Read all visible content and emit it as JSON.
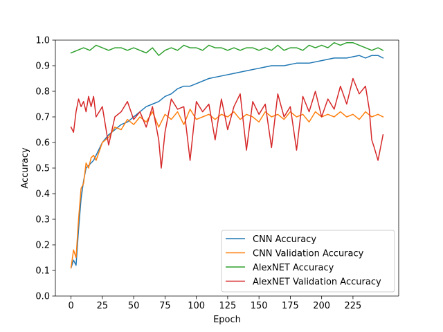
{
  "chart_data": {
    "type": "line",
    "xlabel": "Epoch",
    "ylabel": "Accuracy",
    "xlim": [
      -12.5,
      261.5
    ],
    "ylim": [
      0.0,
      1.0
    ],
    "xticks": [
      0,
      25,
      50,
      75,
      100,
      125,
      150,
      175,
      200,
      225
    ],
    "yticks": [
      0.0,
      0.1,
      0.2,
      0.3,
      0.4,
      0.5,
      0.6,
      0.7,
      0.8,
      0.9,
      1.0
    ],
    "xtick_labels": [
      "0",
      "25",
      "50",
      "75",
      "100",
      "125",
      "150",
      "175",
      "200",
      "225"
    ],
    "ytick_labels": [
      "0.0",
      "0.1",
      "0.2",
      "0.3",
      "0.4",
      "0.5",
      "0.6",
      "0.7",
      "0.8",
      "0.9",
      "1.0"
    ],
    "grid": false,
    "legend_position": "lower-right",
    "series": [
      {
        "name": "CNN Accuracy",
        "color": "#1f77b4",
        "x": [
          0,
          2,
          4,
          6,
          8,
          10,
          12,
          14,
          16,
          18,
          20,
          25,
          30,
          35,
          40,
          45,
          50,
          55,
          60,
          65,
          70,
          75,
          80,
          85,
          90,
          95,
          100,
          110,
          120,
          130,
          140,
          150,
          160,
          170,
          180,
          190,
          200,
          210,
          220,
          230,
          235,
          240,
          245,
          249
        ],
        "y": [
          0.11,
          0.14,
          0.12,
          0.26,
          0.38,
          0.45,
          0.5,
          0.51,
          0.52,
          0.53,
          0.55,
          0.6,
          0.63,
          0.65,
          0.67,
          0.68,
          0.7,
          0.72,
          0.74,
          0.75,
          0.76,
          0.78,
          0.79,
          0.81,
          0.82,
          0.82,
          0.83,
          0.85,
          0.86,
          0.87,
          0.88,
          0.89,
          0.9,
          0.9,
          0.91,
          0.91,
          0.92,
          0.93,
          0.93,
          0.94,
          0.93,
          0.94,
          0.94,
          0.93
        ]
      },
      {
        "name": "CNN Validation Accuracy",
        "color": "#ff7f0e",
        "x": [
          0,
          2,
          4,
          6,
          8,
          10,
          12,
          14,
          16,
          18,
          20,
          25,
          30,
          35,
          40,
          45,
          50,
          55,
          60,
          65,
          70,
          75,
          80,
          85,
          90,
          95,
          100,
          105,
          110,
          115,
          120,
          125,
          130,
          135,
          140,
          145,
          150,
          155,
          160,
          165,
          170,
          175,
          180,
          185,
          190,
          195,
          200,
          205,
          210,
          215,
          220,
          225,
          230,
          235,
          240,
          245,
          249
        ],
        "y": [
          0.11,
          0.18,
          0.15,
          0.3,
          0.42,
          0.44,
          0.52,
          0.5,
          0.54,
          0.55,
          0.53,
          0.6,
          0.62,
          0.66,
          0.65,
          0.69,
          0.67,
          0.7,
          0.68,
          0.72,
          0.66,
          0.71,
          0.69,
          0.72,
          0.67,
          0.73,
          0.69,
          0.7,
          0.71,
          0.69,
          0.71,
          0.7,
          0.72,
          0.69,
          0.71,
          0.7,
          0.68,
          0.72,
          0.7,
          0.71,
          0.69,
          0.72,
          0.7,
          0.71,
          0.68,
          0.72,
          0.7,
          0.71,
          0.7,
          0.72,
          0.7,
          0.71,
          0.69,
          0.72,
          0.7,
          0.71,
          0.7
        ]
      },
      {
        "name": "AlexNET Accuracy",
        "color": "#2ca02c",
        "x": [
          0,
          5,
          10,
          15,
          20,
          25,
          30,
          35,
          40,
          45,
          50,
          55,
          60,
          65,
          70,
          75,
          80,
          85,
          90,
          95,
          100,
          105,
          110,
          115,
          120,
          125,
          130,
          135,
          140,
          145,
          150,
          155,
          160,
          165,
          170,
          175,
          180,
          185,
          190,
          195,
          200,
          205,
          210,
          215,
          220,
          225,
          230,
          235,
          240,
          245,
          249
        ],
        "y": [
          0.95,
          0.96,
          0.97,
          0.96,
          0.98,
          0.97,
          0.96,
          0.97,
          0.97,
          0.96,
          0.97,
          0.96,
          0.95,
          0.97,
          0.94,
          0.96,
          0.97,
          0.96,
          0.98,
          0.97,
          0.97,
          0.96,
          0.98,
          0.97,
          0.97,
          0.96,
          0.97,
          0.96,
          0.97,
          0.97,
          0.96,
          0.97,
          0.96,
          0.98,
          0.96,
          0.97,
          0.97,
          0.96,
          0.98,
          0.97,
          0.98,
          0.97,
          0.99,
          0.98,
          0.99,
          0.99,
          0.98,
          0.97,
          0.96,
          0.97,
          0.96
        ]
      },
      {
        "name": "AlexNET Validation Accuracy",
        "color": "#d62728",
        "x": [
          0,
          2,
          4,
          6,
          8,
          10,
          12,
          14,
          16,
          18,
          20,
          25,
          30,
          35,
          40,
          45,
          50,
          55,
          60,
          65,
          70,
          72,
          75,
          80,
          85,
          90,
          95,
          100,
          105,
          110,
          115,
          120,
          125,
          130,
          135,
          140,
          145,
          150,
          155,
          160,
          165,
          170,
          175,
          180,
          185,
          190,
          195,
          200,
          205,
          210,
          215,
          220,
          225,
          230,
          235,
          238,
          240,
          242,
          245,
          249
        ],
        "y": [
          0.66,
          0.64,
          0.72,
          0.77,
          0.74,
          0.76,
          0.72,
          0.78,
          0.74,
          0.78,
          0.7,
          0.74,
          0.59,
          0.7,
          0.72,
          0.76,
          0.69,
          0.72,
          0.66,
          0.74,
          0.61,
          0.5,
          0.64,
          0.77,
          0.73,
          0.74,
          0.53,
          0.76,
          0.72,
          0.75,
          0.61,
          0.77,
          0.65,
          0.74,
          0.79,
          0.57,
          0.76,
          0.71,
          0.75,
          0.58,
          0.79,
          0.7,
          0.74,
          0.57,
          0.78,
          0.72,
          0.8,
          0.7,
          0.77,
          0.73,
          0.82,
          0.75,
          0.85,
          0.79,
          0.82,
          0.73,
          0.61,
          0.58,
          0.53,
          0.63
        ]
      }
    ]
  }
}
